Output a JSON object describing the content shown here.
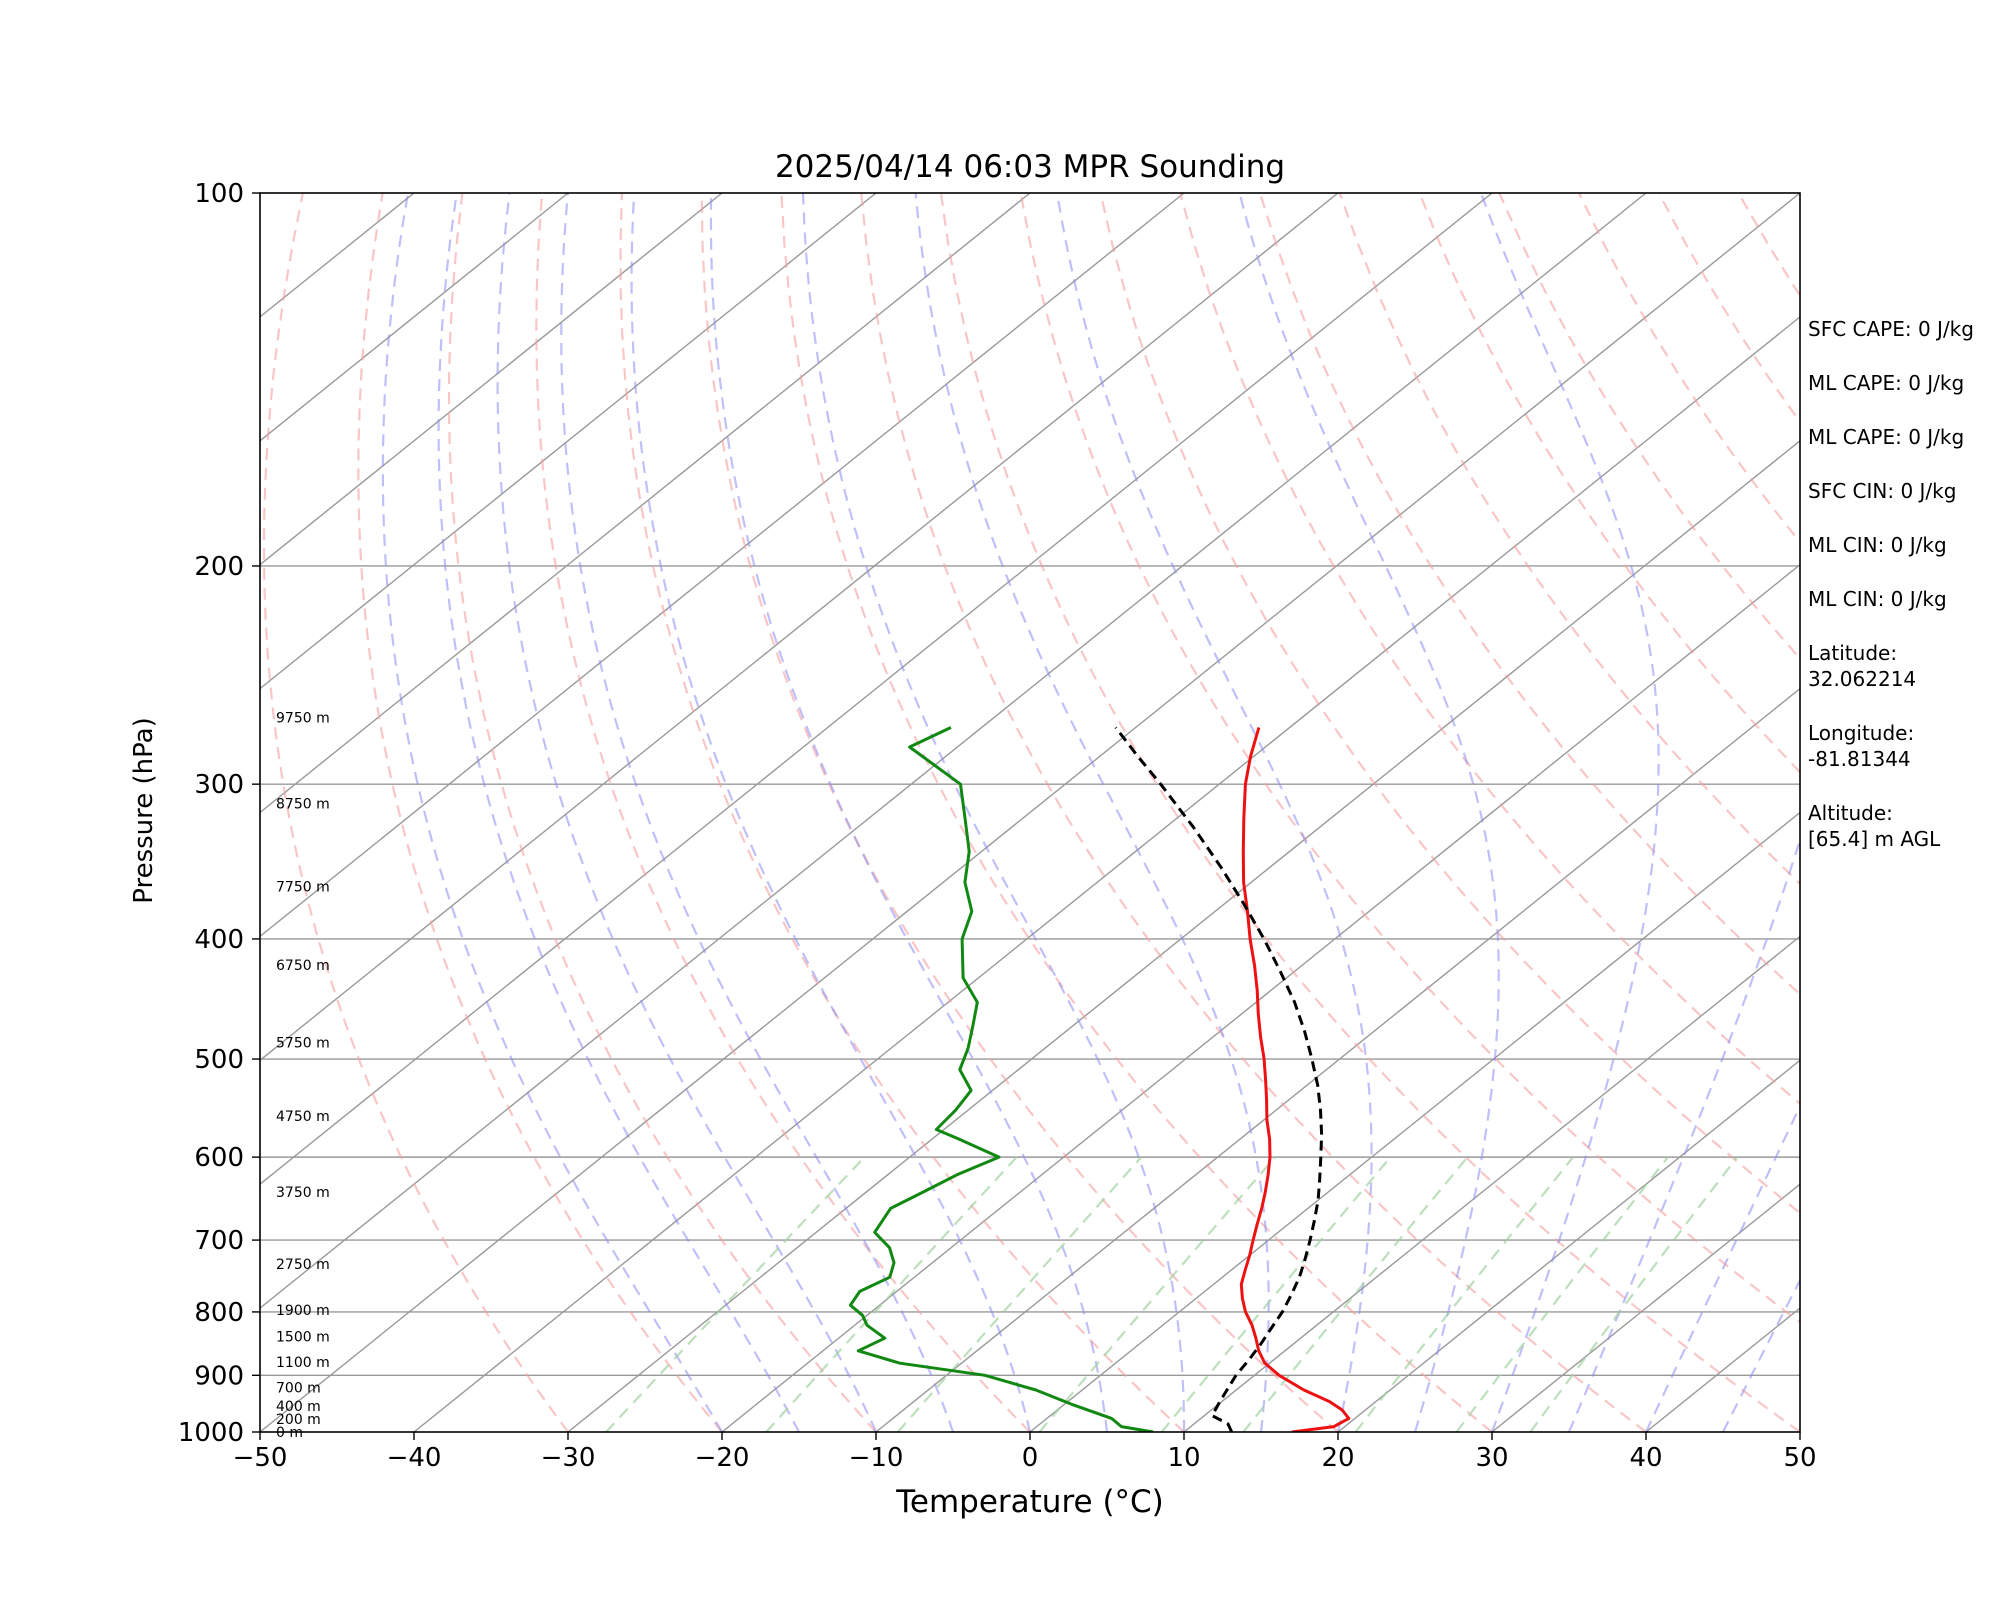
{
  "chart_data": {
    "type": "line",
    "title": "2025/04/14 06:03 MPR Sounding",
    "xlabel": "Temperature (°C)",
    "ylabel": "Pressure (hPa)",
    "xlim": [
      -50,
      50
    ],
    "ylim": [
      1000,
      100
    ],
    "y_scale": "log",
    "skew": true,
    "grid": true,
    "x_ticks": [
      -50,
      -40,
      -30,
      -20,
      -10,
      0,
      10,
      20,
      30,
      40,
      50
    ],
    "x_tick_labels": [
      "−50",
      "−40",
      "−30",
      "−20",
      "−10",
      "0",
      "10",
      "20",
      "30",
      "40",
      "50"
    ],
    "y_ticks": [
      1000,
      900,
      800,
      700,
      600,
      500,
      400,
      300,
      200,
      100
    ],
    "y_tick_labels": [
      "1000",
      "900",
      "800",
      "700",
      "600",
      "500",
      "400",
      "300",
      "200",
      "100"
    ],
    "height_labels": [
      {
        "p": 1000,
        "text": "0 m"
      },
      {
        "p": 976,
        "text": "200 m"
      },
      {
        "p": 953,
        "text": "400 m"
      },
      {
        "p": 921,
        "text": "700 m"
      },
      {
        "p": 878,
        "text": "1100 m"
      },
      {
        "p": 837,
        "text": "1500 m"
      },
      {
        "p": 797,
        "text": "1900 m"
      },
      {
        "p": 732,
        "text": "2750 m"
      },
      {
        "p": 640,
        "text": "3750 m"
      },
      {
        "p": 556,
        "text": "4750 m"
      },
      {
        "p": 485,
        "text": "5750 m"
      },
      {
        "p": 420,
        "text": "6750 m"
      },
      {
        "p": 363,
        "text": "7750 m"
      },
      {
        "p": 311,
        "text": "8750 m"
      },
      {
        "p": 265,
        "text": "9750 m"
      }
    ],
    "series": [
      {
        "role": "temperature",
        "color": "#ee1111",
        "p": [
          1000,
          990,
          975,
          960,
          945,
          925,
          900,
          880,
          860,
          840,
          820,
          800,
          780,
          760,
          740,
          720,
          700,
          680,
          660,
          640,
          620,
          600,
          580,
          560,
          540,
          520,
          500,
          480,
          460,
          440,
          420,
          400,
          380,
          360,
          340,
          320,
          300,
          285,
          270
        ],
        "t": [
          17.0,
          19.3,
          19.6,
          18.5,
          17.0,
          14.4,
          11.6,
          9.7,
          8.3,
          7.1,
          5.8,
          4.3,
          3.0,
          1.8,
          0.9,
          0.0,
          -1.0,
          -2.0,
          -3.0,
          -4.1,
          -5.3,
          -6.6,
          -8.1,
          -9.8,
          -11.4,
          -13.1,
          -14.9,
          -16.9,
          -18.9,
          -20.9,
          -23.1,
          -25.5,
          -27.9,
          -30.5,
          -33.0,
          -35.6,
          -38.3,
          -40.2,
          -42.0
        ]
      },
      {
        "role": "dewpoint",
        "color": "#118811",
        "p": [
          1000,
          990,
          975,
          950,
          925,
          900,
          880,
          860,
          840,
          820,
          805,
          790,
          770,
          750,
          730,
          710,
          690,
          660,
          640,
          620,
          600,
          580,
          570,
          550,
          530,
          510,
          490,
          470,
          450,
          430,
          400,
          380,
          360,
          340,
          320,
          300,
          280,
          270
        ],
        "t": [
          8.0,
          5.5,
          4.2,
          0.5,
          -3.0,
          -7.5,
          -14.0,
          -17.7,
          -17.0,
          -19.2,
          -20.3,
          -21.9,
          -22.4,
          -21.6,
          -22.5,
          -24.0,
          -26.2,
          -27.1,
          -26.3,
          -25.5,
          -24.2,
          -28.3,
          -30.5,
          -30.8,
          -31.4,
          -33.8,
          -35.0,
          -36.5,
          -38.1,
          -41.0,
          -44.2,
          -45.8,
          -48.6,
          -50.8,
          -53.7,
          -56.8,
          -63.1,
          -62.0
        ]
      },
      {
        "role": "parcel",
        "color": "#000000",
        "dash": "dashed",
        "p": [
          1000,
          985,
          970,
          950,
          925,
          900,
          875,
          850,
          825,
          800,
          775,
          750,
          725,
          700,
          675,
          650,
          625,
          600,
          575,
          550,
          525,
          500,
          475,
          450,
          425,
          400,
          375,
          350,
          325,
          300,
          285,
          270
        ],
        "t": [
          13.1,
          12.2,
          10.5,
          10.0,
          9.4,
          8.8,
          8.4,
          7.9,
          7.3,
          6.7,
          5.9,
          5.0,
          3.9,
          2.7,
          1.4,
          0.0,
          -1.6,
          -3.3,
          -5.1,
          -7.1,
          -9.3,
          -11.8,
          -14.5,
          -17.5,
          -20.9,
          -24.6,
          -28.7,
          -33.2,
          -38.2,
          -43.8,
          -47.5,
          -51.3
        ]
      }
    ]
  },
  "side_panel": {
    "items": [
      {
        "label": "SFC CAPE:",
        "value": "0 J/kg",
        "layout": "inline"
      },
      {
        "label": "ML CAPE:",
        "value": "0 J/kg",
        "layout": "inline"
      },
      {
        "label": "ML CAPE:",
        "value": "0 J/kg",
        "layout": "inline"
      },
      {
        "label": "SFC CIN:",
        "value": "0 J/kg",
        "layout": "inline"
      },
      {
        "label": "ML CIN:",
        "value": "0 J/kg",
        "layout": "inline"
      },
      {
        "label": "ML CIN:",
        "value": "0 J/kg",
        "layout": "inline"
      },
      {
        "label": "Latitude:",
        "value": "32.062214",
        "layout": "block"
      },
      {
        "label": "Longitude:",
        "value": "-81.81344",
        "layout": "block"
      },
      {
        "label": "Altitude:",
        "value": "[65.4] m AGL",
        "layout": "block"
      }
    ]
  },
  "colors": {
    "isotherm": "#999999",
    "dry_adiabat": "#f4a0a0",
    "moist_adiabat": "#8c8cf2",
    "mixing_ratio": "#9fd29f",
    "frame": "#000000"
  }
}
